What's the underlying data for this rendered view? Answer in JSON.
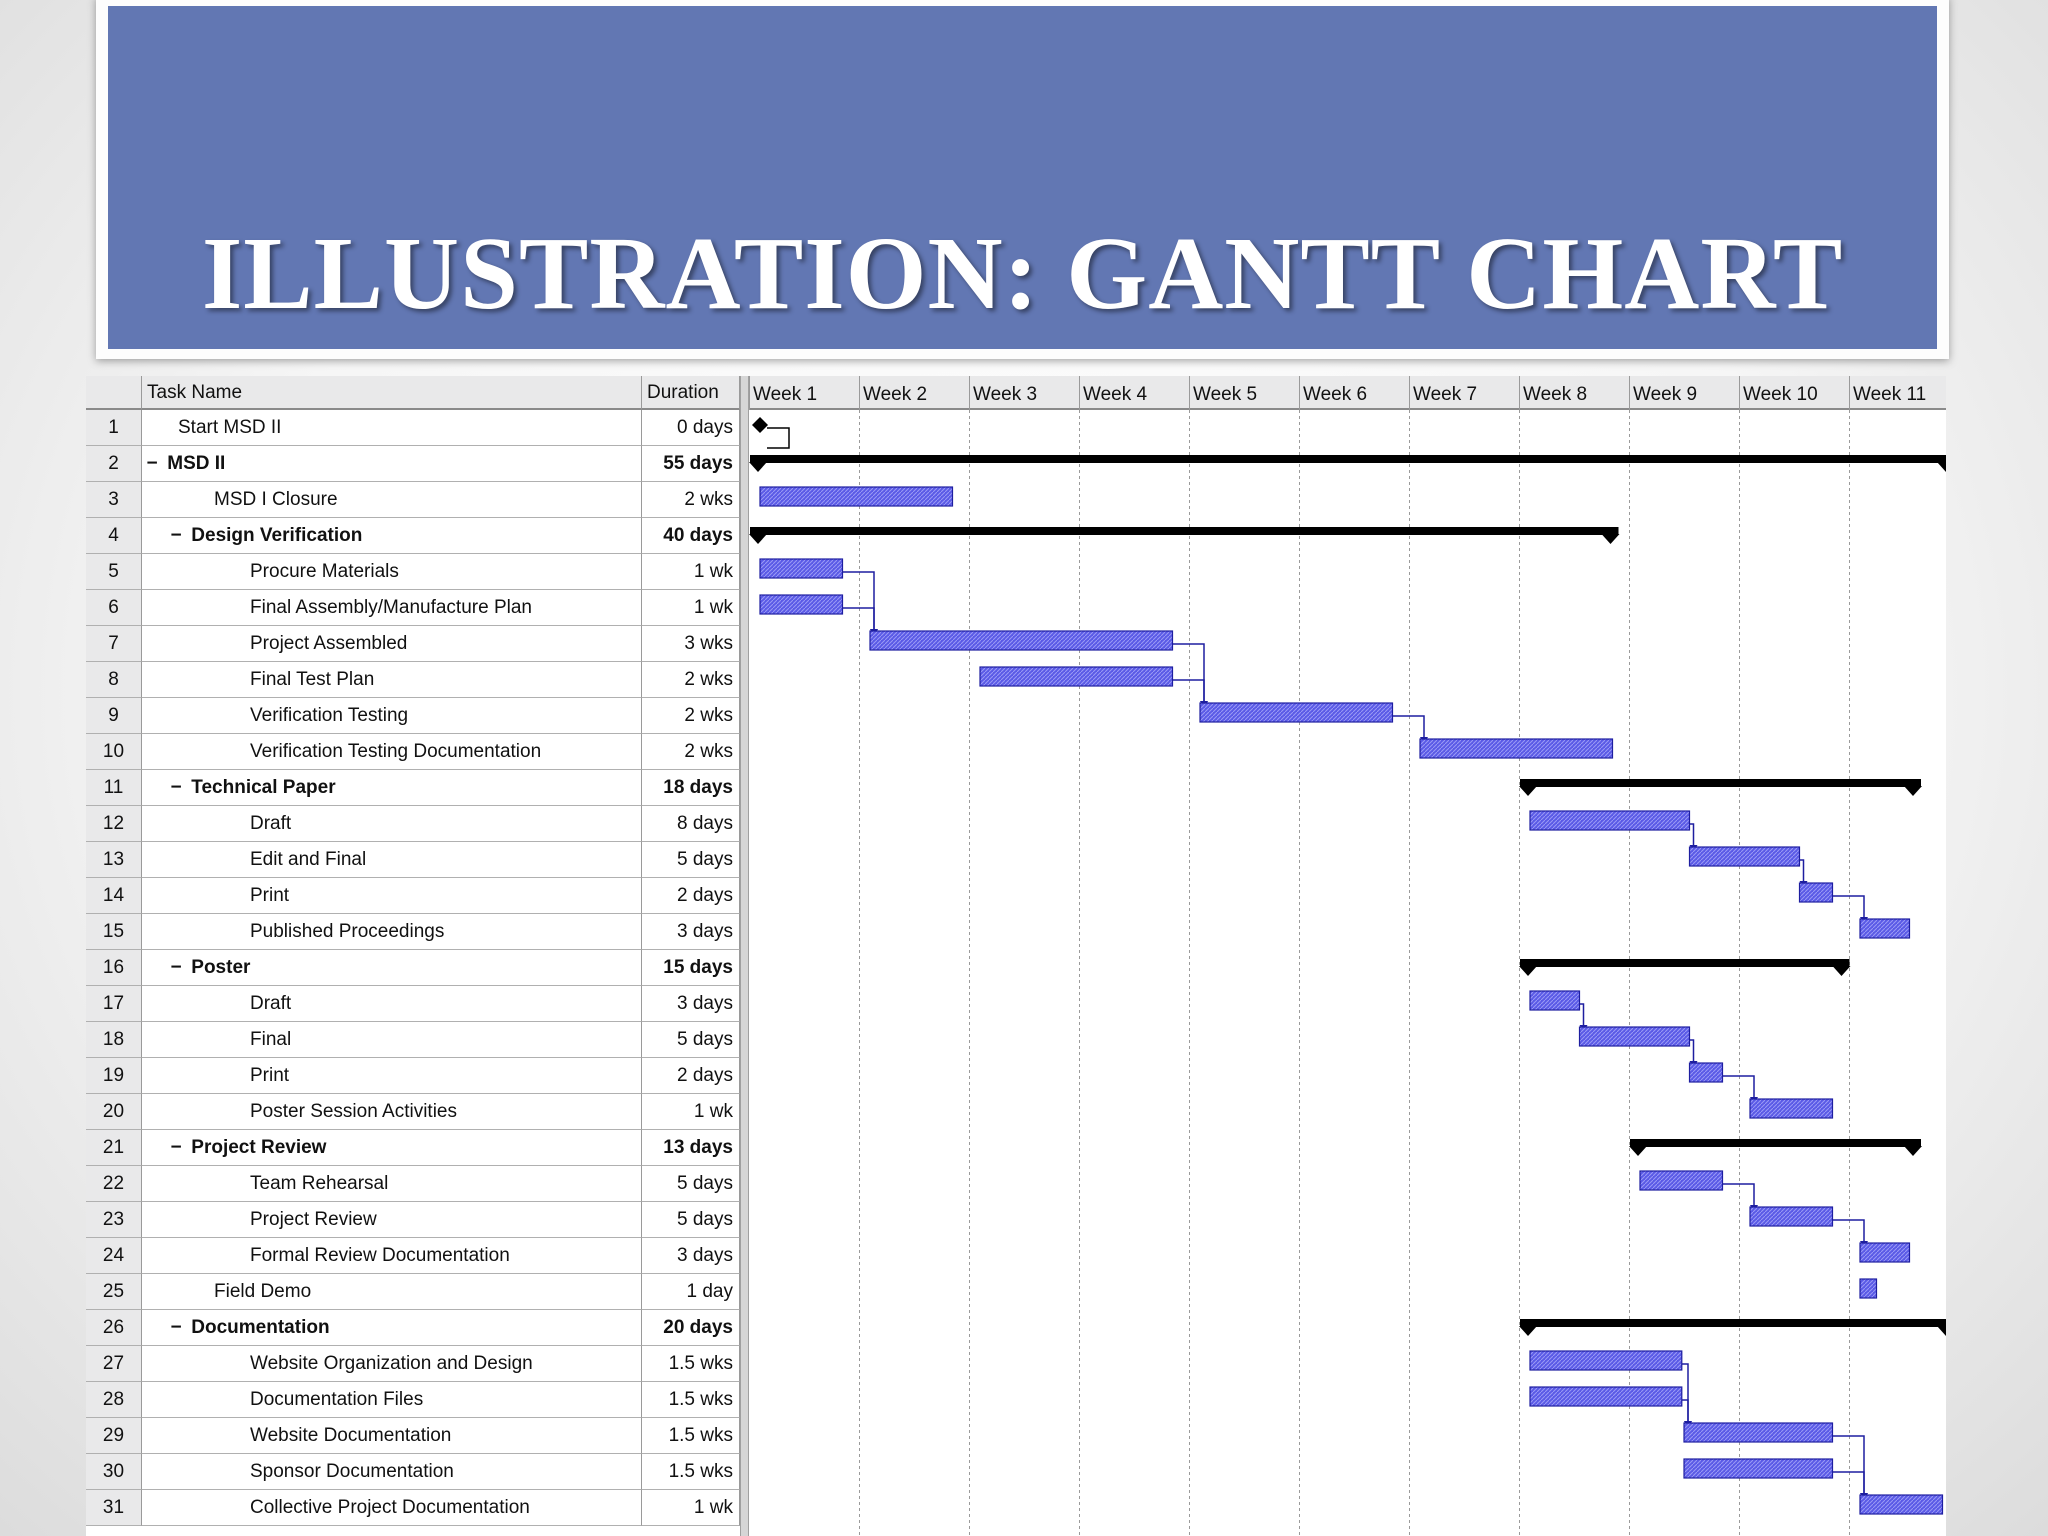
{
  "slide": {
    "title": "ILLUSTRATION: GANTT CHART"
  },
  "table": {
    "headers": {
      "task_name": "Task Name",
      "duration": "Duration"
    }
  },
  "chart_data": {
    "type": "gantt",
    "title": "ILLUSTRATION: GANTT CHART",
    "time_unit": "weeks",
    "x_range_weeks": [
      0,
      11
    ],
    "x_tick_labels": [
      "Week 1",
      "Week 2",
      "Week 3",
      "Week 4",
      "Week 5",
      "Week 6",
      "Week 7",
      "Week 8",
      "Week 9",
      "Week 10",
      "Week 11"
    ],
    "colors": {
      "task_bar": "#5a5ae6",
      "task_bar_border": "#1e1ea0",
      "summary_bar": "#000000",
      "link": "#1e1ea0",
      "header_bg": "#6277b3"
    },
    "tasks": [
      {
        "id": "1",
        "name": "Start MSD II",
        "duration": "0 days",
        "level": 1,
        "type": "milestone",
        "start": 0.1,
        "end": 0.1
      },
      {
        "id": "2",
        "name": "MSD II",
        "duration": "55 days",
        "level": 0,
        "type": "summary",
        "start": 0.1,
        "end": 10.9
      },
      {
        "id": "3",
        "name": "MSD I Closure",
        "duration": "2 wks",
        "level": 2,
        "type": "task",
        "start": 0.1,
        "end": 1.85
      },
      {
        "id": "4",
        "name": "Design Verification",
        "duration": "40 days",
        "level": 1,
        "type": "summary",
        "start": 0.1,
        "end": 7.85
      },
      {
        "id": "5",
        "name": "Procure Materials",
        "duration": "1 wk",
        "level": 3,
        "type": "task",
        "start": 0.1,
        "end": 0.85
      },
      {
        "id": "6",
        "name": "Final Assembly/Manufacture Plan",
        "duration": "1 wk",
        "level": 3,
        "type": "task",
        "start": 0.1,
        "end": 0.85
      },
      {
        "id": "7",
        "name": "Project Assembled",
        "duration": "3 wks",
        "level": 3,
        "type": "task",
        "start": 1.1,
        "end": 3.85
      },
      {
        "id": "8",
        "name": "Final Test Plan",
        "duration": "2 wks",
        "level": 3,
        "type": "task",
        "start": 2.1,
        "end": 3.85
      },
      {
        "id": "9",
        "name": "Verification Testing",
        "duration": "2 wks",
        "level": 3,
        "type": "task",
        "start": 4.1,
        "end": 5.85
      },
      {
        "id": "10",
        "name": "Verification Testing Documentation",
        "duration": "2 wks",
        "level": 3,
        "type": "task",
        "start": 6.1,
        "end": 7.85
      },
      {
        "id": "11",
        "name": "Technical Paper",
        "duration": "18 days",
        "level": 1,
        "type": "summary",
        "start": 7.1,
        "end": 10.6
      },
      {
        "id": "12",
        "name": "Draft",
        "duration": "8 days",
        "level": 3,
        "type": "task",
        "start": 7.1,
        "end": 8.55
      },
      {
        "id": "13",
        "name": "Edit and Final",
        "duration": "5 days",
        "level": 3,
        "type": "task",
        "start": 8.55,
        "end": 9.55
      },
      {
        "id": "14",
        "name": "Print",
        "duration": "2 days",
        "level": 3,
        "type": "task",
        "start": 9.55,
        "end": 9.85
      },
      {
        "id": "15",
        "name": "Published Proceedings",
        "duration": "3 days",
        "level": 3,
        "type": "task",
        "start": 10.1,
        "end": 10.55
      },
      {
        "id": "16",
        "name": "Poster",
        "duration": "15 days",
        "level": 1,
        "type": "summary",
        "start": 7.1,
        "end": 9.95
      },
      {
        "id": "17",
        "name": "Draft",
        "duration": "3 days",
        "level": 3,
        "type": "task",
        "start": 7.1,
        "end": 7.55
      },
      {
        "id": "18",
        "name": "Final",
        "duration": "5 days",
        "level": 3,
        "type": "task",
        "start": 7.55,
        "end": 8.55
      },
      {
        "id": "19",
        "name": "Print",
        "duration": "2 days",
        "level": 3,
        "type": "task",
        "start": 8.55,
        "end": 8.85
      },
      {
        "id": "20",
        "name": "Poster Session Activities",
        "duration": "1 wk",
        "level": 3,
        "type": "task",
        "start": 9.1,
        "end": 9.85
      },
      {
        "id": "21",
        "name": "Project Review",
        "duration": "13 days",
        "level": 1,
        "type": "summary",
        "start": 8.1,
        "end": 10.6
      },
      {
        "id": "22",
        "name": "Team Rehearsal",
        "duration": "5 days",
        "level": 3,
        "type": "task",
        "start": 8.1,
        "end": 8.85
      },
      {
        "id": "23",
        "name": "Project Review",
        "duration": "5 days",
        "level": 3,
        "type": "task",
        "start": 9.1,
        "end": 9.85
      },
      {
        "id": "24",
        "name": "Formal Review Documentation",
        "duration": "3 days",
        "level": 3,
        "type": "task",
        "start": 10.1,
        "end": 10.55
      },
      {
        "id": "25",
        "name": "Field Demo",
        "duration": "1 day",
        "level": 2,
        "type": "task",
        "start": 10.1,
        "end": 10.25
      },
      {
        "id": "26",
        "name": "Documentation",
        "duration": "20 days",
        "level": 1,
        "type": "summary",
        "start": 7.1,
        "end": 10.9
      },
      {
        "id": "27",
        "name": "Website Organization and Design",
        "duration": "1.5 wks",
        "level": 3,
        "type": "task",
        "start": 7.1,
        "end": 8.48
      },
      {
        "id": "28",
        "name": "Documentation Files",
        "duration": "1.5 wks",
        "level": 3,
        "type": "task",
        "start": 7.1,
        "end": 8.48
      },
      {
        "id": "29",
        "name": "Website Documentation",
        "duration": "1.5 wks",
        "level": 3,
        "type": "task",
        "start": 8.5,
        "end": 9.85
      },
      {
        "id": "30",
        "name": "Sponsor Documentation",
        "duration": "1.5 wks",
        "level": 3,
        "type": "task",
        "start": 8.5,
        "end": 9.85
      },
      {
        "id": "31",
        "name": "Collective Project Documentation",
        "duration": "1 wk",
        "level": 3,
        "type": "task",
        "start": 10.1,
        "end": 10.85
      }
    ],
    "links": [
      [
        "1",
        "3"
      ],
      [
        "5",
        "7"
      ],
      [
        "6",
        "7"
      ],
      [
        "7",
        "9"
      ],
      [
        "8",
        "9"
      ],
      [
        "9",
        "10"
      ],
      [
        "12",
        "13"
      ],
      [
        "13",
        "14"
      ],
      [
        "14",
        "15"
      ],
      [
        "17",
        "18"
      ],
      [
        "18",
        "19"
      ],
      [
        "19",
        "20"
      ],
      [
        "22",
        "23"
      ],
      [
        "23",
        "24"
      ],
      [
        "27",
        "29"
      ],
      [
        "28",
        "29"
      ],
      [
        "29",
        "31"
      ],
      [
        "30",
        "31"
      ]
    ]
  }
}
